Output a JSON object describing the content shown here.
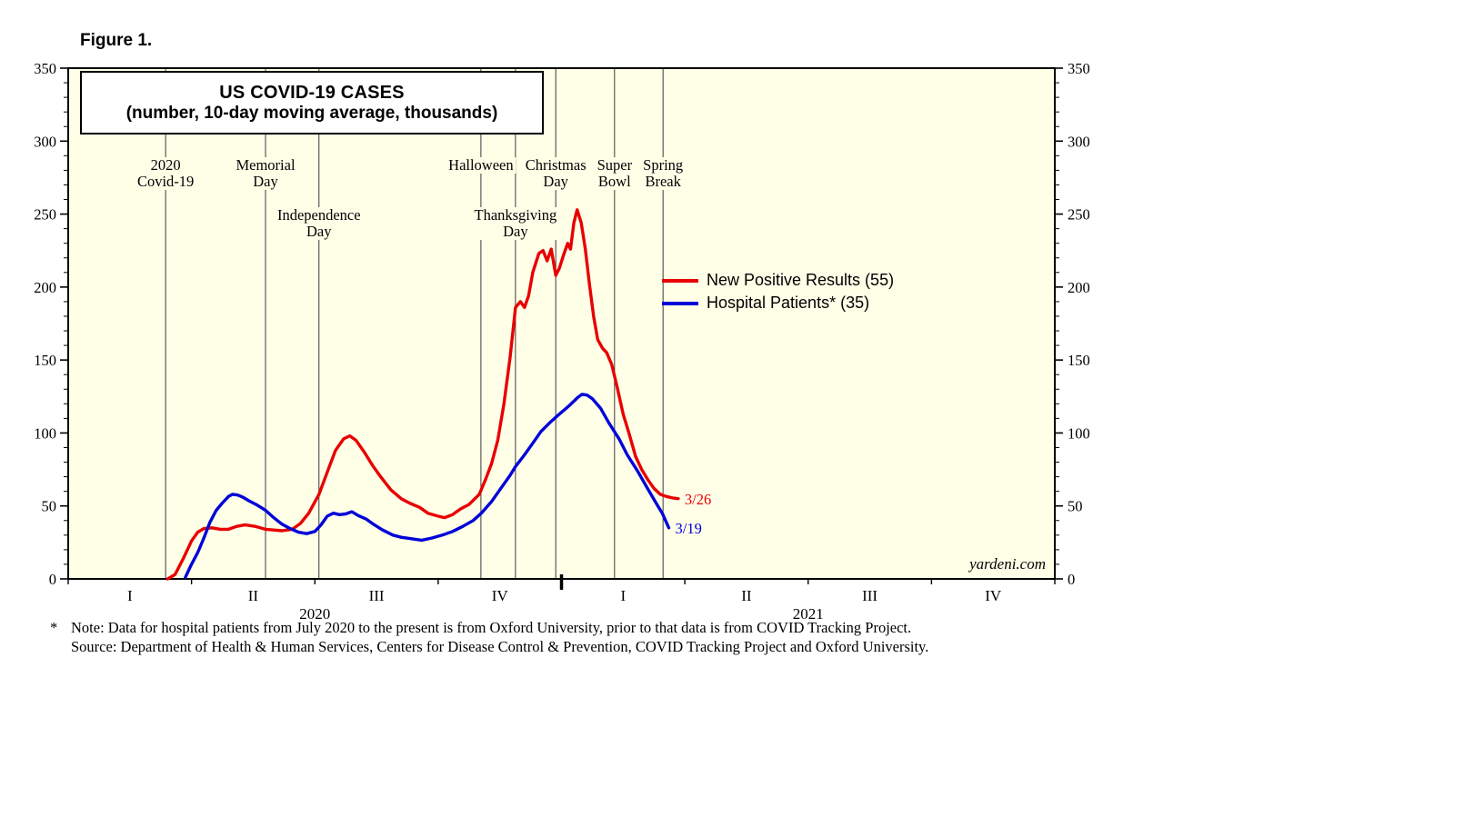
{
  "figure_label": "Figure 1.",
  "watermark": "yardeni.com",
  "footnote": {
    "marker": "*",
    "note": "Note: Data for hospital patients from July 2020 to the present is from Oxford University, prior to that data is from COVID Tracking Project.",
    "source": "Source: Department of Health & Human Services, Centers for Disease Control & Prevention, COVID Tracking Project and Oxford University."
  },
  "chart_data": {
    "type": "line",
    "title": "US COVID-19 CASES",
    "subtitle": "(number, 10-day moving average, thousands)",
    "background": "#FFFFE8",
    "ylim": [
      0,
      350
    ],
    "ytick_step": 50,
    "yminor_step": 10,
    "x_months_range": [
      0,
      24
    ],
    "quarter_labels": [
      {
        "label": "I",
        "month": 1.5
      },
      {
        "label": "II",
        "month": 4.5
      },
      {
        "label": "III",
        "month": 7.5
      },
      {
        "label": "IV",
        "month": 10.5
      },
      {
        "label": "I",
        "month": 13.5
      },
      {
        "label": "II",
        "month": 16.5
      },
      {
        "label": "III",
        "month": 19.5
      },
      {
        "label": "IV",
        "month": 22.5
      }
    ],
    "year_labels": [
      {
        "label": "2020",
        "month": 6
      },
      {
        "label": "2021",
        "month": 18
      }
    ],
    "quarter_tick_months": [
      0,
      3,
      6,
      9,
      12,
      15,
      18,
      21,
      24
    ],
    "year_tick_months": [
      12
    ],
    "events": [
      {
        "label": "2020\nCovid-19",
        "month": 2.37,
        "row": "top"
      },
      {
        "label": "Memorial\nDay",
        "month": 4.8,
        "row": "top"
      },
      {
        "label": "Independence\nDay",
        "month": 6.1,
        "row": "bottom"
      },
      {
        "label": "Halloween",
        "month": 10.04,
        "row": "top"
      },
      {
        "label": "Thanksgiving\nDay",
        "month": 10.88,
        "row": "bottom"
      },
      {
        "label": "Christmas\nDay",
        "month": 11.86,
        "row": "top"
      },
      {
        "label": "Super\nBowl",
        "month": 13.29,
        "row": "top"
      },
      {
        "label": "Spring\nBreak",
        "month": 14.47,
        "row": "top"
      }
    ],
    "series": [
      {
        "name": "New Positive Results (55)",
        "color": "#E80000",
        "end_label": "3/26",
        "points": [
          [
            2.42,
            0
          ],
          [
            2.6,
            3
          ],
          [
            2.8,
            14
          ],
          [
            3.0,
            26
          ],
          [
            3.15,
            32
          ],
          [
            3.3,
            34.5
          ],
          [
            3.5,
            35
          ],
          [
            3.7,
            34
          ],
          [
            3.9,
            34
          ],
          [
            4.1,
            36
          ],
          [
            4.3,
            37
          ],
          [
            4.55,
            36
          ],
          [
            4.8,
            34
          ],
          [
            5.0,
            33.5
          ],
          [
            5.2,
            33
          ],
          [
            5.45,
            34
          ],
          [
            5.65,
            38
          ],
          [
            5.85,
            45
          ],
          [
            6.1,
            58
          ],
          [
            6.3,
            73
          ],
          [
            6.5,
            88
          ],
          [
            6.7,
            96
          ],
          [
            6.85,
            98
          ],
          [
            7.0,
            95
          ],
          [
            7.2,
            87
          ],
          [
            7.4,
            78
          ],
          [
            7.6,
            70
          ],
          [
            7.85,
            61
          ],
          [
            8.1,
            55
          ],
          [
            8.3,
            52
          ],
          [
            8.55,
            49
          ],
          [
            8.75,
            45
          ],
          [
            9.0,
            43
          ],
          [
            9.15,
            42
          ],
          [
            9.35,
            44
          ],
          [
            9.55,
            48
          ],
          [
            9.75,
            51
          ],
          [
            10.0,
            58
          ],
          [
            10.15,
            68
          ],
          [
            10.3,
            79
          ],
          [
            10.45,
            95
          ],
          [
            10.6,
            120
          ],
          [
            10.75,
            152
          ],
          [
            10.88,
            186
          ],
          [
            11.0,
            190
          ],
          [
            11.1,
            186
          ],
          [
            11.2,
            194
          ],
          [
            11.3,
            210
          ],
          [
            11.45,
            223
          ],
          [
            11.55,
            225
          ],
          [
            11.65,
            218
          ],
          [
            11.75,
            226
          ],
          [
            11.86,
            208
          ],
          [
            11.95,
            213
          ],
          [
            12.05,
            222
          ],
          [
            12.15,
            230
          ],
          [
            12.22,
            226
          ],
          [
            12.3,
            244
          ],
          [
            12.38,
            253
          ],
          [
            12.48,
            244
          ],
          [
            12.58,
            226
          ],
          [
            12.68,
            202
          ],
          [
            12.78,
            180
          ],
          [
            12.88,
            164
          ],
          [
            13.0,
            158
          ],
          [
            13.1,
            155
          ],
          [
            13.22,
            147
          ],
          [
            13.35,
            132
          ],
          [
            13.5,
            113
          ],
          [
            13.65,
            99
          ],
          [
            13.8,
            84
          ],
          [
            13.95,
            75
          ],
          [
            14.1,
            68
          ],
          [
            14.25,
            62
          ],
          [
            14.4,
            58
          ],
          [
            14.55,
            56.5
          ],
          [
            14.7,
            55.5
          ],
          [
            14.84,
            55
          ]
        ]
      },
      {
        "name": "Hospital Patients* (35)",
        "color": "#0000D8",
        "end_label": "3/19",
        "points": [
          [
            2.85,
            1
          ],
          [
            3.0,
            10
          ],
          [
            3.15,
            18
          ],
          [
            3.3,
            28
          ],
          [
            3.45,
            39
          ],
          [
            3.6,
            47
          ],
          [
            3.75,
            52
          ],
          [
            3.9,
            56.5
          ],
          [
            4.0,
            58
          ],
          [
            4.12,
            57.5
          ],
          [
            4.25,
            56
          ],
          [
            4.4,
            53.5
          ],
          [
            4.6,
            50.5
          ],
          [
            4.8,
            47
          ],
          [
            5.0,
            42
          ],
          [
            5.2,
            37.5
          ],
          [
            5.4,
            34.5
          ],
          [
            5.6,
            32
          ],
          [
            5.8,
            31
          ],
          [
            6.0,
            32.5
          ],
          [
            6.15,
            37
          ],
          [
            6.3,
            43
          ],
          [
            6.45,
            45
          ],
          [
            6.6,
            44
          ],
          [
            6.75,
            44.5
          ],
          [
            6.9,
            46
          ],
          [
            7.05,
            43.5
          ],
          [
            7.25,
            41
          ],
          [
            7.45,
            37
          ],
          [
            7.65,
            33.5
          ],
          [
            7.9,
            30
          ],
          [
            8.1,
            28.5
          ],
          [
            8.35,
            27.5
          ],
          [
            8.6,
            26.5
          ],
          [
            8.85,
            28
          ],
          [
            9.1,
            30
          ],
          [
            9.35,
            32.5
          ],
          [
            9.6,
            36
          ],
          [
            9.85,
            40
          ],
          [
            10.05,
            45
          ],
          [
            10.3,
            53
          ],
          [
            10.55,
            63
          ],
          [
            10.75,
            71
          ],
          [
            10.88,
            77
          ],
          [
            11.1,
            85
          ],
          [
            11.3,
            93
          ],
          [
            11.5,
            101
          ],
          [
            11.75,
            108
          ],
          [
            11.95,
            113
          ],
          [
            12.2,
            119
          ],
          [
            12.4,
            124.5
          ],
          [
            12.5,
            126.5
          ],
          [
            12.62,
            126
          ],
          [
            12.75,
            123.5
          ],
          [
            12.95,
            117
          ],
          [
            13.15,
            107
          ],
          [
            13.4,
            96
          ],
          [
            13.6,
            85
          ],
          [
            13.85,
            74
          ],
          [
            14.05,
            64
          ],
          [
            14.3,
            52
          ],
          [
            14.45,
            45
          ],
          [
            14.53,
            40
          ],
          [
            14.61,
            35
          ]
        ]
      }
    ]
  }
}
